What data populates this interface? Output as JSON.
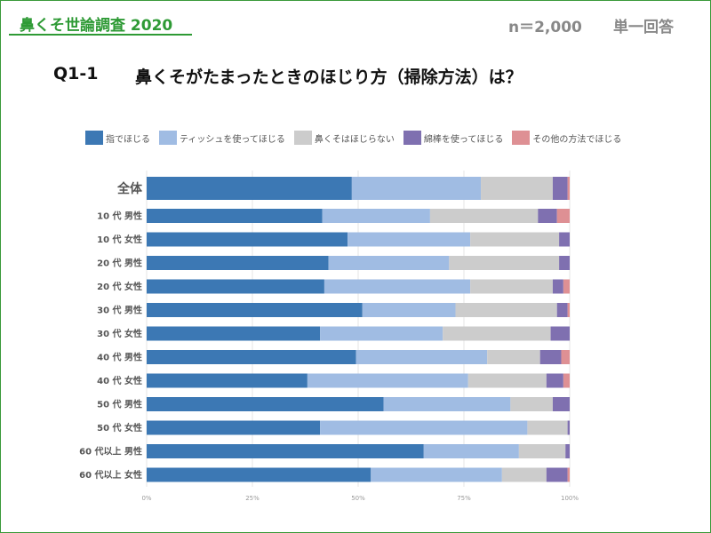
{
  "header": {
    "survey_title": "鼻くそ世論調査 2020",
    "sample": "n＝2,000",
    "answer_type": "単一回答"
  },
  "question": {
    "number": "Q1-1",
    "text": "鼻くそがたまったときのほじり方（掃除方法）は？"
  },
  "colors": [
    "#3c78b4",
    "#a0bce3",
    "#cccccc",
    "#7f70b0",
    "#de9094"
  ],
  "chart_data": {
    "type": "bar",
    "orientation": "horizontal",
    "stacked": true,
    "percent": true,
    "categories": [
      "全体",
      "10 代 男性",
      "10 代 女性",
      "20 代 男性",
      "20 代 女性",
      "30 代 男性",
      "30 代 女性",
      "40 代 男性",
      "40 代 女性",
      "50 代 男性",
      "50 代 女性",
      "60 代以上 男性",
      "60 代以上 女性"
    ],
    "series": [
      {
        "name": "指でほじる",
        "values": [
          48.5,
          41.5,
          47.5,
          43,
          42,
          51,
          41,
          49.5,
          38,
          56,
          41,
          65.5,
          53
        ]
      },
      {
        "name": "ティッシュを使ってほじる",
        "values": [
          30.5,
          25.5,
          29,
          28.5,
          34.5,
          22,
          29,
          31,
          38,
          30,
          49,
          22.5,
          31
        ]
      },
      {
        "name": "鼻くそはほじらない",
        "values": [
          17,
          25.5,
          21,
          26,
          19.5,
          24,
          25.5,
          12.5,
          18.5,
          10,
          9.5,
          11,
          10.5
        ]
      },
      {
        "name": "綿棒を使ってほじる",
        "values": [
          3.5,
          4.5,
          2.5,
          2.5,
          2.5,
          2.5,
          4.5,
          5,
          4,
          4,
          0.5,
          1,
          5
        ]
      },
      {
        "name": "その他の方法でほじる",
        "values": [
          0.5,
          3,
          0,
          0,
          1.5,
          0.5,
          0,
          2,
          1.5,
          0,
          0,
          0,
          0.5
        ]
      }
    ],
    "xticks": [
      "0%",
      "25%",
      "50%",
      "75%",
      "100%"
    ],
    "xlim": [
      0,
      100
    ]
  }
}
